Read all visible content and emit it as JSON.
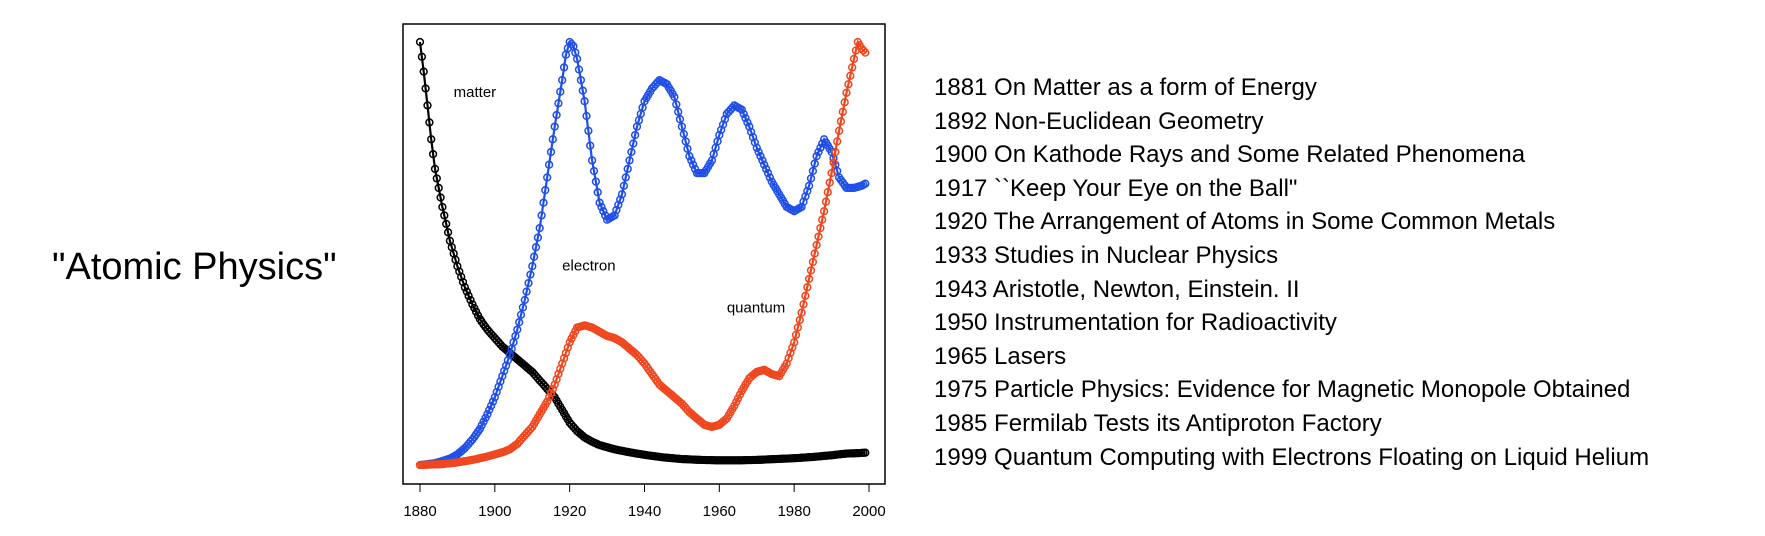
{
  "topic": "\"Atomic Physics\"",
  "articles": [
    "1881 On Matter as a form of Energy",
    "1892 Non-Euclidean Geometry",
    "1900 On Kathode Rays and Some Related Phenomena",
    "1917 ``Keep Your Eye on the Ball\"",
    "1920 The Arrangement of Atoms in Some Common Metals",
    "1933 Studies in Nuclear Physics",
    "1943 Aristotle, Newton, Einstein. II",
    "1950 Instrumentation for Radioactivity",
    "1965 Lasers",
    "1975 Particle Physics: Evidence for Magnetic Monopole Obtained",
    "1985 Fermilab Tests its Antiproton Factory",
    "1999 Quantum Computing with Electrons Floating on Liquid Helium"
  ],
  "chart_data": {
    "type": "line",
    "title": "",
    "xlabel": "",
    "ylabel": "",
    "xlim": [
      1876,
      2004
    ],
    "ylim": [
      0,
      1
    ],
    "xticks": [
      1880,
      1900,
      1920,
      1940,
      1960,
      1980,
      2000
    ],
    "grid": false,
    "markers": "open-circle",
    "series": [
      {
        "name": "matter",
        "color": "#000000",
        "points": [
          [
            1880,
            1.0
          ],
          [
            1881,
            0.93
          ],
          [
            1882,
            0.85
          ],
          [
            1883,
            0.77
          ],
          [
            1884,
            0.7
          ],
          [
            1886,
            0.61
          ],
          [
            1888,
            0.53
          ],
          [
            1890,
            0.47
          ],
          [
            1892,
            0.42
          ],
          [
            1894,
            0.38
          ],
          [
            1896,
            0.345
          ],
          [
            1898,
            0.32
          ],
          [
            1900,
            0.3
          ],
          [
            1902,
            0.28
          ],
          [
            1904,
            0.265
          ],
          [
            1906,
            0.25
          ],
          [
            1908,
            0.235
          ],
          [
            1910,
            0.22
          ],
          [
            1912,
            0.2
          ],
          [
            1914,
            0.18
          ],
          [
            1916,
            0.16
          ],
          [
            1918,
            0.13
          ],
          [
            1920,
            0.1
          ],
          [
            1922,
            0.08
          ],
          [
            1924,
            0.065
          ],
          [
            1926,
            0.055
          ],
          [
            1928,
            0.047
          ],
          [
            1932,
            0.037
          ],
          [
            1936,
            0.03
          ],
          [
            1940,
            0.024
          ],
          [
            1945,
            0.018
          ],
          [
            1950,
            0.014
          ],
          [
            1955,
            0.012
          ],
          [
            1960,
            0.011
          ],
          [
            1965,
            0.011
          ],
          [
            1970,
            0.012
          ],
          [
            1975,
            0.014
          ],
          [
            1980,
            0.016
          ],
          [
            1985,
            0.019
          ],
          [
            1990,
            0.023
          ],
          [
            1994,
            0.027
          ],
          [
            1997,
            0.028
          ],
          [
            1999,
            0.029
          ]
        ]
      },
      {
        "name": "electron",
        "color": "#1f4fe6",
        "points": [
          [
            1880,
            0.0
          ],
          [
            1884,
            0.004
          ],
          [
            1888,
            0.015
          ],
          [
            1890,
            0.025
          ],
          [
            1892,
            0.04
          ],
          [
            1894,
            0.06
          ],
          [
            1896,
            0.085
          ],
          [
            1898,
            0.12
          ],
          [
            1900,
            0.16
          ],
          [
            1902,
            0.21
          ],
          [
            1904,
            0.26
          ],
          [
            1906,
            0.32
          ],
          [
            1908,
            0.39
          ],
          [
            1910,
            0.47
          ],
          [
            1912,
            0.56
          ],
          [
            1914,
            0.68
          ],
          [
            1916,
            0.8
          ],
          [
            1918,
            0.91
          ],
          [
            1919,
            0.97
          ],
          [
            1920,
            1.0
          ],
          [
            1921,
            0.99
          ],
          [
            1922,
            0.96
          ],
          [
            1924,
            0.86
          ],
          [
            1926,
            0.72
          ],
          [
            1928,
            0.62
          ],
          [
            1930,
            0.58
          ],
          [
            1932,
            0.59
          ],
          [
            1934,
            0.64
          ],
          [
            1936,
            0.72
          ],
          [
            1938,
            0.8
          ],
          [
            1940,
            0.86
          ],
          [
            1942,
            0.89
          ],
          [
            1944,
            0.91
          ],
          [
            1946,
            0.9
          ],
          [
            1948,
            0.87
          ],
          [
            1950,
            0.8
          ],
          [
            1952,
            0.73
          ],
          [
            1954,
            0.69
          ],
          [
            1956,
            0.69
          ],
          [
            1958,
            0.72
          ],
          [
            1960,
            0.78
          ],
          [
            1962,
            0.83
          ],
          [
            1964,
            0.85
          ],
          [
            1966,
            0.84
          ],
          [
            1968,
            0.8
          ],
          [
            1970,
            0.75
          ],
          [
            1972,
            0.71
          ],
          [
            1974,
            0.67
          ],
          [
            1976,
            0.64
          ],
          [
            1978,
            0.61
          ],
          [
            1980,
            0.6
          ],
          [
            1982,
            0.61
          ],
          [
            1984,
            0.66
          ],
          [
            1986,
            0.73
          ],
          [
            1988,
            0.77
          ],
          [
            1990,
            0.74
          ],
          [
            1992,
            0.68
          ],
          [
            1994,
            0.655
          ],
          [
            1996,
            0.655
          ],
          [
            1998,
            0.66
          ],
          [
            1999,
            0.665
          ]
        ]
      },
      {
        "name": "quantum",
        "color": "#f0461e",
        "points": [
          [
            1880,
            0.0
          ],
          [
            1886,
            0.002
          ],
          [
            1890,
            0.006
          ],
          [
            1894,
            0.012
          ],
          [
            1898,
            0.02
          ],
          [
            1902,
            0.03
          ],
          [
            1904,
            0.037
          ],
          [
            1906,
            0.05
          ],
          [
            1908,
            0.07
          ],
          [
            1910,
            0.09
          ],
          [
            1912,
            0.12
          ],
          [
            1914,
            0.15
          ],
          [
            1916,
            0.19
          ],
          [
            1918,
            0.24
          ],
          [
            1920,
            0.29
          ],
          [
            1922,
            0.325
          ],
          [
            1924,
            0.33
          ],
          [
            1926,
            0.325
          ],
          [
            1928,
            0.315
          ],
          [
            1930,
            0.305
          ],
          [
            1932,
            0.3
          ],
          [
            1934,
            0.29
          ],
          [
            1936,
            0.275
          ],
          [
            1938,
            0.26
          ],
          [
            1940,
            0.24
          ],
          [
            1942,
            0.215
          ],
          [
            1944,
            0.19
          ],
          [
            1946,
            0.175
          ],
          [
            1948,
            0.16
          ],
          [
            1950,
            0.145
          ],
          [
            1952,
            0.125
          ],
          [
            1954,
            0.11
          ],
          [
            1956,
            0.095
          ],
          [
            1958,
            0.09
          ],
          [
            1960,
            0.095
          ],
          [
            1962,
            0.11
          ],
          [
            1964,
            0.14
          ],
          [
            1966,
            0.175
          ],
          [
            1968,
            0.205
          ],
          [
            1970,
            0.22
          ],
          [
            1972,
            0.225
          ],
          [
            1974,
            0.215
          ],
          [
            1976,
            0.21
          ],
          [
            1978,
            0.24
          ],
          [
            1980,
            0.29
          ],
          [
            1982,
            0.36
          ],
          [
            1984,
            0.44
          ],
          [
            1986,
            0.52
          ],
          [
            1988,
            0.6
          ],
          [
            1990,
            0.69
          ],
          [
            1992,
            0.79
          ],
          [
            1994,
            0.88
          ],
          [
            1996,
            0.96
          ],
          [
            1997,
            1.0
          ],
          [
            1998,
            0.985
          ],
          [
            1999,
            0.975
          ]
        ]
      }
    ],
    "annotations": [
      {
        "text": "matter",
        "x": 1889,
        "y": 0.87
      },
      {
        "text": "electron",
        "x": 1918,
        "y": 0.46
      },
      {
        "text": "quantum",
        "x": 1962,
        "y": 0.36
      }
    ]
  }
}
